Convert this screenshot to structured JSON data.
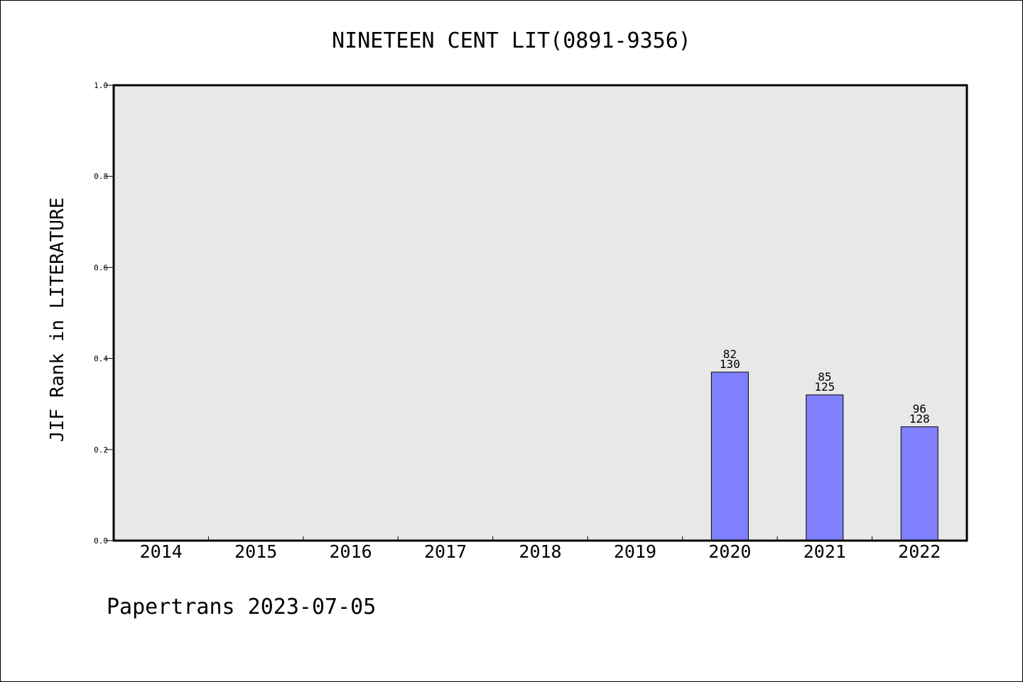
{
  "chart_data": {
    "type": "bar",
    "title": "NINETEEN CENT LIT(0891-9356)",
    "ylabel": "JIF Rank in LITERATURE",
    "xlabel": "",
    "categories": [
      "2014",
      "2015",
      "2016",
      "2017",
      "2018",
      "2019",
      "2020",
      "2021",
      "2022"
    ],
    "values": [
      null,
      null,
      null,
      null,
      null,
      null,
      0.37,
      0.32,
      0.25
    ],
    "bar_labels": [
      null,
      null,
      null,
      null,
      null,
      null,
      {
        "rank": "82",
        "total": "130"
      },
      {
        "rank": "85",
        "total": "125"
      },
      {
        "rank": "96",
        "total": "128"
      }
    ],
    "ylim": [
      0,
      1.0
    ],
    "yticks": [
      "0.0",
      "0.2",
      "0.4",
      "0.6",
      "0.8",
      "1.0"
    ],
    "bar_color": "#8080ff",
    "plot_background": "#e8e8e8",
    "grid": false
  },
  "footer": {
    "text": "Papertrans 2023-07-05"
  }
}
